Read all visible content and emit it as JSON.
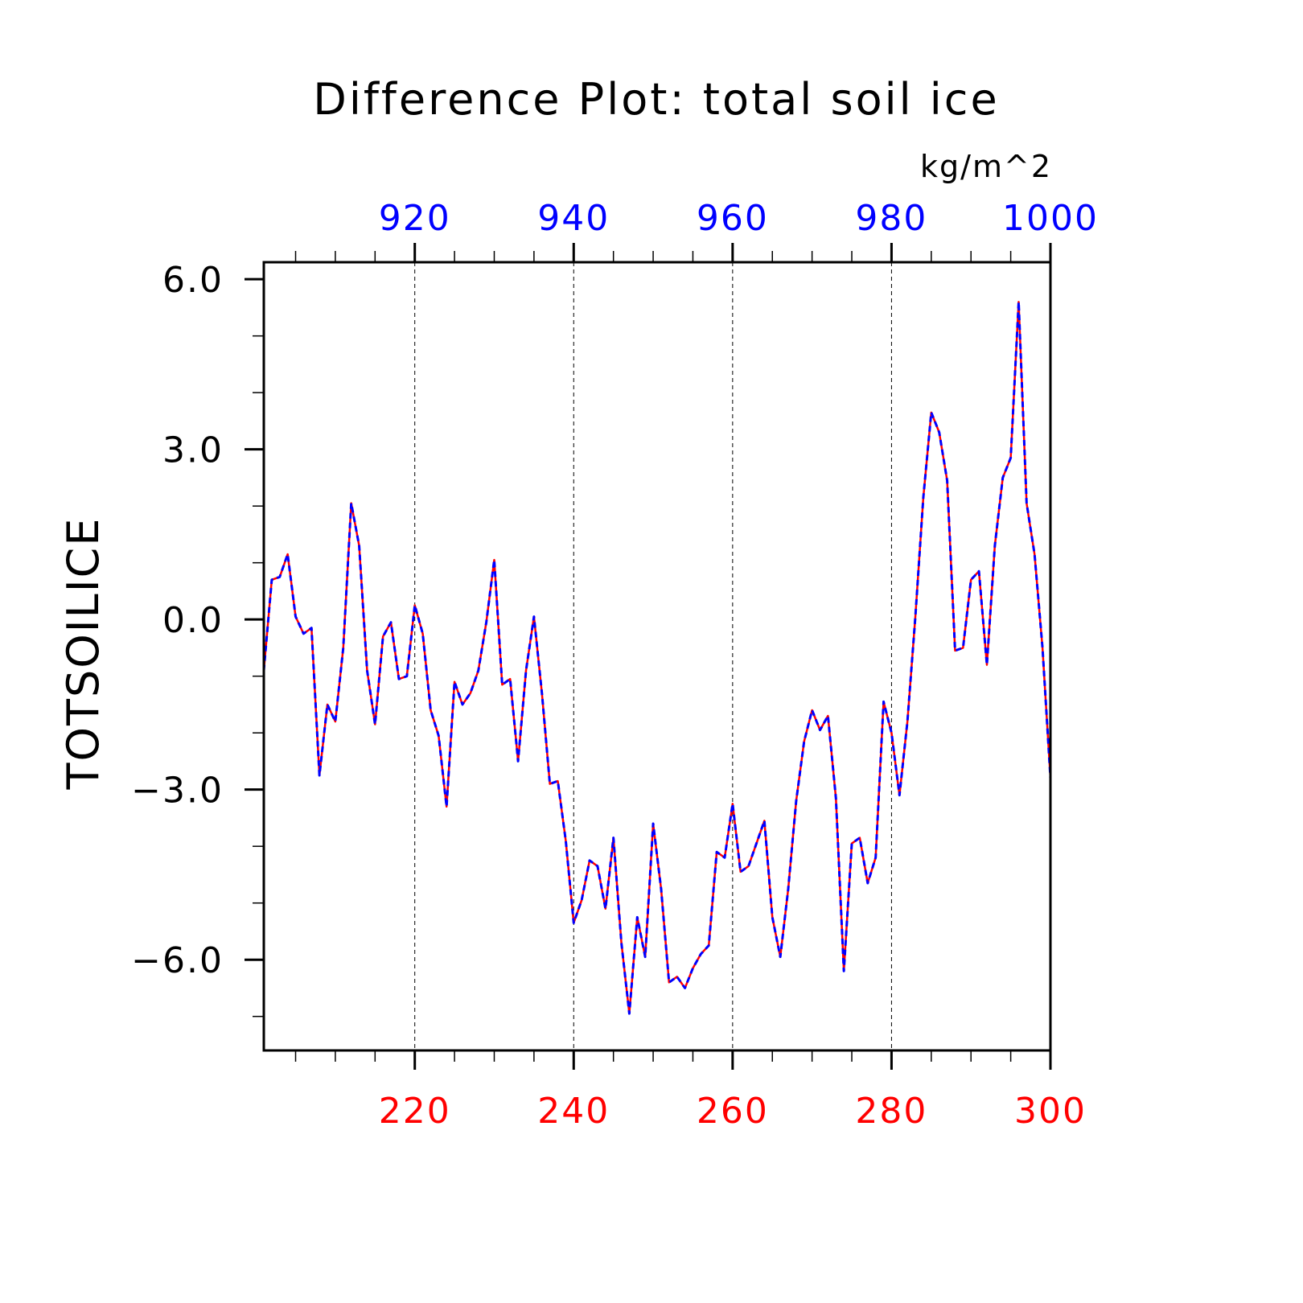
{
  "chart_data": {
    "type": "line",
    "title": "Difference Plot: total soil ice",
    "ylabel": "TOTSOILICE",
    "units_label": "kg/m^2",
    "xlim_bottom": [
      201,
      300
    ],
    "xlim_top": [
      901,
      1000
    ],
    "ylim": [
      -7.6,
      6.3
    ],
    "y_ticks": [
      6.0,
      3.0,
      0.0,
      -3.0,
      -6.0
    ],
    "y_tick_labels": [
      "6.0",
      "3.0",
      "0.0",
      "−3.0",
      "−6.0"
    ],
    "x_ticks_bottom": [
      220,
      240,
      260,
      280,
      300
    ],
    "x_tick_labels_bottom": [
      "220",
      "240",
      "260",
      "280",
      "300"
    ],
    "x_ticks_top": [
      920,
      940,
      960,
      980,
      1000
    ],
    "x_tick_labels_top": [
      "920",
      "940",
      "960",
      "980",
      "1000"
    ],
    "grid": "vertical dashed at labeled x ticks",
    "colors": {
      "bottom_axis": "#ff0000",
      "top_axis": "#0000ff",
      "series_red": "#ff0000",
      "series_blue": "#0000ff",
      "frame": "#000000"
    },
    "x": [
      201,
      202,
      203,
      204,
      205,
      206,
      207,
      208,
      209,
      210,
      211,
      212,
      213,
      214,
      215,
      216,
      217,
      218,
      219,
      220,
      221,
      222,
      223,
      224,
      225,
      226,
      227,
      228,
      229,
      230,
      231,
      232,
      233,
      234,
      235,
      236,
      237,
      238,
      239,
      240,
      241,
      242,
      243,
      244,
      245,
      246,
      247,
      248,
      249,
      250,
      251,
      252,
      253,
      254,
      255,
      256,
      257,
      258,
      259,
      260,
      261,
      262,
      263,
      264,
      265,
      266,
      267,
      268,
      269,
      270,
      271,
      272,
      273,
      274,
      275,
      276,
      277,
      278,
      279,
      280,
      281,
      282,
      283,
      284,
      285,
      286,
      287,
      288,
      289,
      290,
      291,
      292,
      293,
      294,
      295,
      296,
      297,
      298,
      299,
      300
    ],
    "series": [
      {
        "values": [
          -0.9,
          0.7,
          0.75,
          1.15,
          0.05,
          -0.25,
          -0.15,
          -2.75,
          -1.5,
          -1.8,
          -0.5,
          2.05,
          1.3,
          -0.9,
          -1.85,
          -0.3,
          -0.05,
          -1.05,
          -1.0,
          0.25,
          -0.25,
          -1.6,
          -2.05,
          -3.3,
          -1.1,
          -1.5,
          -1.3,
          -0.9,
          -0.05,
          1.05,
          -1.15,
          -1.05,
          -2.5,
          -0.9,
          0.05,
          -1.3,
          -2.9,
          -2.85,
          -3.9,
          -5.35,
          -4.95,
          -4.25,
          -4.35,
          -5.1,
          -3.85,
          -5.7,
          -6.95,
          -5.25,
          -5.95,
          -3.6,
          -4.75,
          -6.4,
          -6.3,
          -6.5,
          -6.15,
          -5.9,
          -5.75,
          -4.1,
          -4.2,
          -3.25,
          -4.45,
          -4.35,
          -3.95,
          -3.55,
          -5.25,
          -5.95,
          -4.75,
          -3.2,
          -2.15,
          -1.6,
          -1.95,
          -1.7,
          -3.15,
          -6.2,
          -3.95,
          -3.85,
          -4.65,
          -4.2,
          -1.45,
          -2.0,
          -3.1,
          -1.8,
          0.05,
          2.15,
          3.65,
          3.3,
          2.45,
          -0.55,
          -0.5,
          0.7,
          0.85,
          -0.8,
          1.3,
          2.5,
          2.85,
          5.6,
          2.05,
          1.15,
          -0.5,
          -2.8
        ]
      }
    ]
  }
}
